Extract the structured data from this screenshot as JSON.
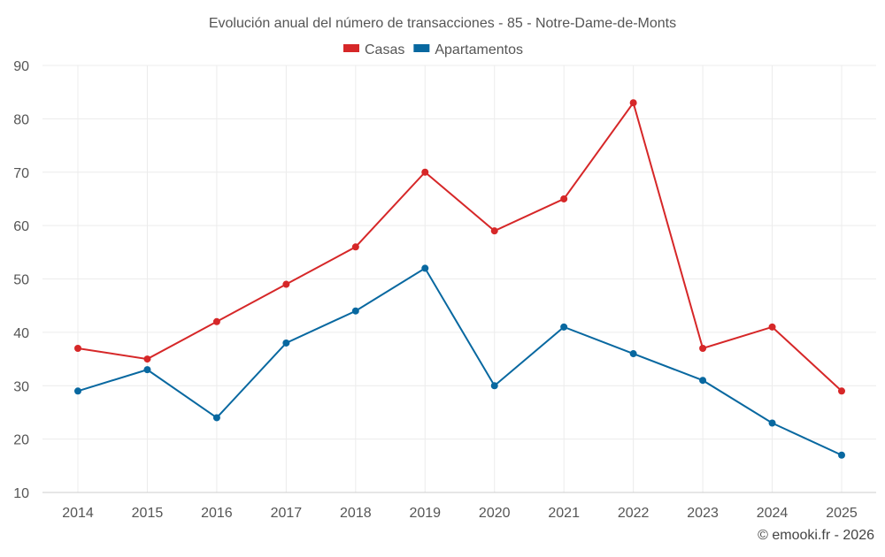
{
  "chart_data": {
    "type": "line",
    "title": "Evolución anual del número de transacciones - 85 - Notre-Dame-de-Monts",
    "categories": [
      "2014",
      "2015",
      "2016",
      "2017",
      "2018",
      "2019",
      "2020",
      "2021",
      "2022",
      "2023",
      "2024",
      "2025"
    ],
    "series": [
      {
        "name": "Casas",
        "color": "#d62728",
        "values": [
          37,
          35,
          42,
          49,
          56,
          70,
          59,
          65,
          83,
          37,
          41,
          29
        ]
      },
      {
        "name": "Apartamentos",
        "color": "#0868a0",
        "values": [
          29,
          33,
          24,
          38,
          44,
          52,
          30,
          41,
          36,
          31,
          23,
          17
        ]
      }
    ],
    "ylim": [
      10,
      90
    ],
    "yticks": [
      10,
      20,
      30,
      40,
      50,
      60,
      70,
      80,
      90
    ],
    "grid": true,
    "legend": "top-center",
    "xlabel": "",
    "ylabel": ""
  },
  "credit": "© emooki.fr - 2026"
}
